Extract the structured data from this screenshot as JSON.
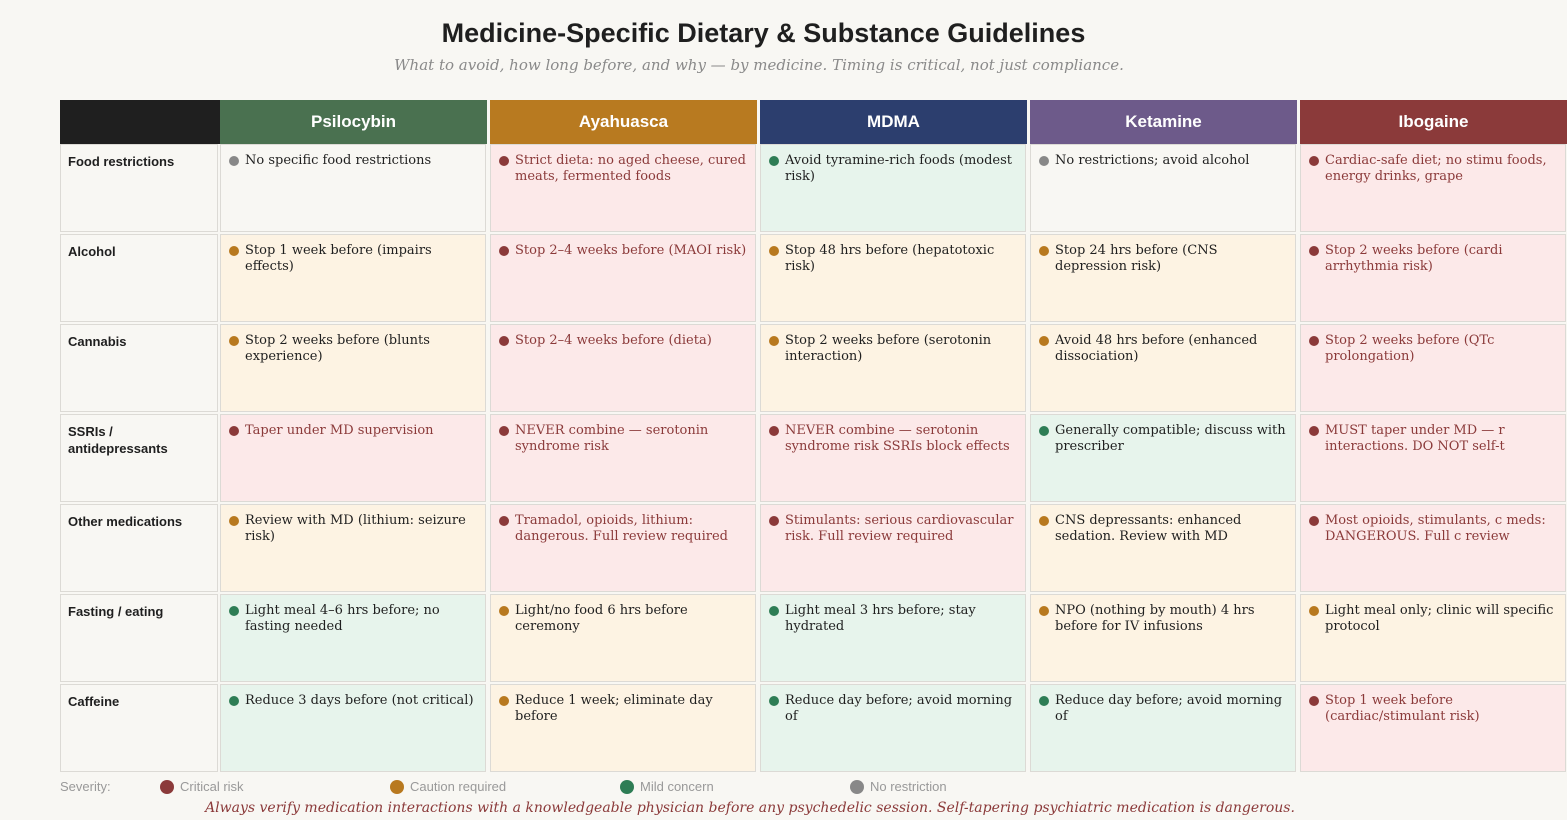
{
  "title": "Medicine-Specific Dietary & Substance Guidelines",
  "subtitle": "What to avoid, how long before, and why — by medicine. Timing is critical, not just compliance.",
  "severity_colors": {
    "critical": {
      "dot": "#8b3a3a",
      "bg": "#fce9e9",
      "text": "#8b3a3a"
    },
    "caution": {
      "dot": "#b8791f",
      "bg": "#fdf3e3",
      "text": "#1f1f1f"
    },
    "mild": {
      "dot": "#2e7d55",
      "bg": "#e7f4ec",
      "text": "#1f1f1f"
    },
    "none": {
      "dot": "#888888",
      "bg": "#f8f7f3",
      "text": "#1f1f1f"
    }
  },
  "medicines": [
    {
      "name": "Psilocybin",
      "color": "#4a7150"
    },
    {
      "name": "Ayahuasca",
      "color": "#b87a20"
    },
    {
      "name": "MDMA",
      "color": "#2c3e6e"
    },
    {
      "name": "Ketamine",
      "color": "#6d5a8a"
    },
    {
      "name": "Ibogaine",
      "color": "#8b3a3a"
    }
  ],
  "header_corner_color": "#1f1f1f",
  "rows": [
    {
      "label": "Food restrictions",
      "cells": [
        [
          "none",
          "No specific food restrictions"
        ],
        [
          "critical",
          "Strict dieta: no aged cheese, cured meats, fermented foods"
        ],
        [
          "mild",
          "Avoid tyramine-rich foods (modest risk)"
        ],
        [
          "none",
          "No restrictions; avoid alcohol"
        ],
        [
          "critical",
          "Cardiac-safe diet; no stimu foods, energy drinks, grape"
        ]
      ]
    },
    {
      "label": "Alcohol",
      "cells": [
        [
          "caution",
          "Stop 1 week before (impairs effects)"
        ],
        [
          "critical",
          "Stop 2–4 weeks before (MAOI risk)"
        ],
        [
          "caution",
          "Stop 48 hrs before (hepatotoxic risk)"
        ],
        [
          "caution",
          "Stop 24 hrs before (CNS depression risk)"
        ],
        [
          "critical",
          "Stop 2 weeks before (cardi arrhythmia risk)"
        ]
      ]
    },
    {
      "label": "Cannabis",
      "cells": [
        [
          "caution",
          "Stop 2 weeks before (blunts experience)"
        ],
        [
          "critical",
          "Stop 2–4 weeks before (dieta)"
        ],
        [
          "caution",
          "Stop 2 weeks before (serotonin interaction)"
        ],
        [
          "caution",
          "Avoid 48 hrs before (enhanced dissociation)"
        ],
        [
          "critical",
          "Stop 2 weeks before (QTc prolongation)"
        ]
      ]
    },
    {
      "label": "SSRIs / antidepressants",
      "cells": [
        [
          "critical",
          "Taper under MD supervision"
        ],
        [
          "critical",
          "NEVER combine — serotonin syndrome risk"
        ],
        [
          "critical",
          "NEVER combine — serotonin syndrome risk SSRIs block effects"
        ],
        [
          "mild",
          "Generally compatible; discuss with prescriber"
        ],
        [
          "critical",
          "MUST taper under MD — r interactions. DO NOT self-t"
        ]
      ]
    },
    {
      "label": "Other medications",
      "cells": [
        [
          "caution",
          "Review with MD (lithium: seizure risk)"
        ],
        [
          "critical",
          "Tramadol, opioids, lithium: dangerous. Full review required"
        ],
        [
          "critical",
          "Stimulants: serious cardiovascular risk. Full review required"
        ],
        [
          "caution",
          "CNS depressants: enhanced sedation. Review with MD"
        ],
        [
          "critical",
          "Most opioids, stimulants, c meds: DANGEROUS. Full c review"
        ]
      ]
    },
    {
      "label": "Fasting / eating",
      "cells": [
        [
          "mild",
          "Light meal 4–6 hrs before; no fasting needed"
        ],
        [
          "caution",
          "Light/no food 6 hrs before ceremony"
        ],
        [
          "mild",
          "Light meal 3 hrs before; stay hydrated"
        ],
        [
          "caution",
          "NPO (nothing by mouth) 4 hrs before for IV infusions"
        ],
        [
          "caution",
          "Light meal only; clinic will specific protocol"
        ]
      ]
    },
    {
      "label": "Caffeine",
      "cells": [
        [
          "mild",
          "Reduce 3 days before (not critical)"
        ],
        [
          "caution",
          "Reduce 1 week; eliminate day before"
        ],
        [
          "mild",
          "Reduce day before; avoid morning of"
        ],
        [
          "mild",
          "Reduce day before; avoid morning of"
        ],
        [
          "critical",
          "Stop 1 week before (cardiac/stimulant risk)"
        ]
      ]
    }
  ],
  "legend": {
    "label": "Severity:",
    "items": [
      {
        "key": "critical",
        "label": "Critical risk"
      },
      {
        "key": "caution",
        "label": "Caution required"
      },
      {
        "key": "mild",
        "label": "Mild concern"
      },
      {
        "key": "none",
        "label": "No restriction"
      }
    ]
  },
  "footnote": "Always verify medication interactions with a knowledgeable physician before any psychedelic session. Self-tapering psychiatric medication is dangerous."
}
